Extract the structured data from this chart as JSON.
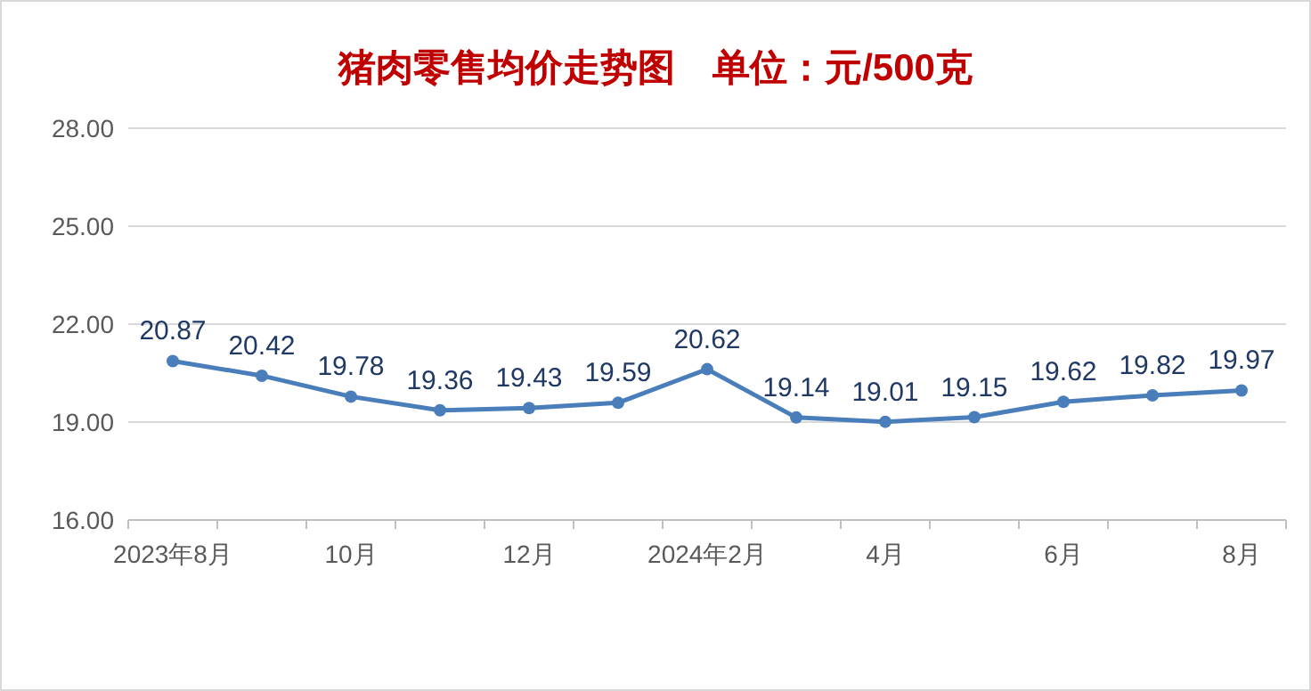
{
  "chart_data": {
    "type": "line",
    "title": "猪肉零售均价走势图　单位：元/500克",
    "categories": [
      "2023年8月",
      null,
      "10月",
      null,
      "12月",
      null,
      "2024年2月",
      null,
      "4月",
      null,
      "6月",
      null,
      "8月"
    ],
    "series": [
      {
        "color": "#4a7ebb",
        "values": [
          20.87,
          20.42,
          19.78,
          19.36,
          19.43,
          19.59,
          20.62,
          19.14,
          19.01,
          19.15,
          19.62,
          19.82,
          19.97
        ]
      }
    ],
    "ylim": [
      16,
      28
    ],
    "yticks": [
      {
        "value": 16,
        "label": "16.00"
      },
      {
        "value": 19,
        "label": "19.00"
      },
      {
        "value": 22,
        "label": "22.00"
      },
      {
        "value": 25,
        "label": "25.00"
      },
      {
        "value": 28,
        "label": "28.00"
      }
    ],
    "grid": "y",
    "marker": "circle",
    "line_style": "solid",
    "data_labels": true
  }
}
